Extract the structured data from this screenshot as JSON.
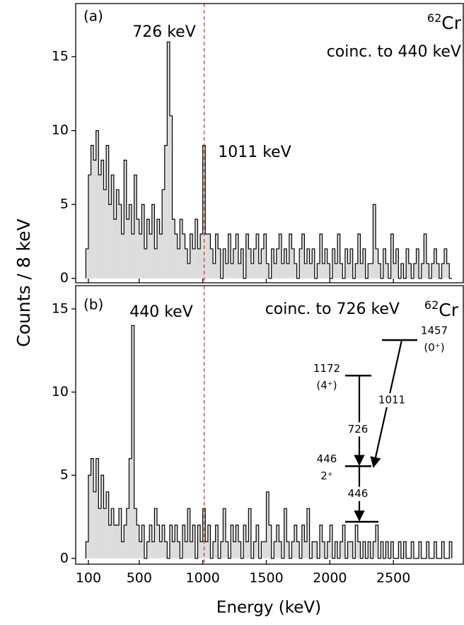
{
  "chart_data": [
    {
      "type": "histogram",
      "panel_label": "(a)",
      "nucleus_mass": "62",
      "nucleus_symbol": "Cr",
      "coincidence": "coinc. to 440 keV",
      "annotations": [
        {
          "text": "726 keV",
          "color": "#000000"
        },
        {
          "text": "1011 keV",
          "color": "#d42a20"
        }
      ],
      "vline": {
        "x": 1011,
        "color": "#d42a20"
      },
      "fill_color": "#dcdcdc",
      "line_color": "#000000",
      "bins": [
        80,
        100,
        120,
        140,
        160,
        180,
        200,
        220,
        240,
        260,
        280,
        300,
        320,
        340,
        360,
        380,
        400,
        420,
        440,
        460,
        480,
        500,
        520,
        540,
        560,
        580,
        600,
        620,
        640,
        660,
        680,
        700,
        720,
        740,
        760,
        780,
        800,
        820,
        840,
        860,
        880,
        900,
        920,
        940,
        960,
        980,
        1000,
        1020,
        1040,
        1060,
        1080,
        1100,
        1120,
        1140,
        1160,
        1180,
        1200,
        1220,
        1240,
        1260,
        1280,
        1300,
        1320,
        1340,
        1360,
        1380,
        1400,
        1420,
        1440,
        1460,
        1480,
        1500,
        1520,
        1540,
        1560,
        1580,
        1600,
        1620,
        1640,
        1660,
        1680,
        1700,
        1720,
        1740,
        1760,
        1780,
        1800,
        1820,
        1840,
        1860,
        1880,
        1900,
        1920,
        1940,
        1960,
        1980,
        2000,
        2020,
        2040,
        2060,
        2080,
        2100,
        2120,
        2140,
        2160,
        2180,
        2200,
        2220,
        2240,
        2260,
        2280,
        2300,
        2320,
        2340,
        2360,
        2380,
        2400,
        2420,
        2440,
        2460,
        2480,
        2500,
        2520,
        2540,
        2560,
        2580,
        2600,
        2620,
        2640,
        2660,
        2680,
        2700,
        2720,
        2740,
        2760,
        2780,
        2800,
        2820,
        2840,
        2860,
        2880,
        2900,
        2920,
        2940,
        2960
      ],
      "values": [
        2,
        7,
        9,
        8,
        10,
        7,
        8,
        6,
        9,
        5,
        7,
        4,
        6,
        5,
        3,
        8,
        4,
        5,
        3,
        7,
        4,
        3,
        5,
        2,
        4,
        3,
        5,
        2,
        4,
        3,
        6,
        9,
        16,
        11,
        4,
        3,
        2,
        4,
        3,
        2,
        1,
        3,
        2,
        4,
        2,
        3,
        9,
        3,
        3,
        2,
        1,
        3,
        2,
        0,
        2,
        1,
        3,
        1,
        2,
        3,
        1,
        2,
        0,
        3,
        2,
        1,
        2,
        3,
        1,
        2,
        3,
        1,
        0,
        2,
        1,
        2,
        3,
        1,
        2,
        1,
        3,
        2,
        1,
        0,
        2,
        3,
        1,
        2,
        1,
        2,
        0,
        1,
        3,
        1,
        2,
        1,
        0,
        2,
        1,
        3,
        1,
        0,
        2,
        1,
        2,
        0,
        1,
        3,
        1,
        2,
        0,
        1,
        1,
        5,
        2,
        1,
        0,
        2,
        1,
        0,
        3,
        1,
        2,
        0,
        1,
        0,
        2,
        1,
        0,
        1,
        2,
        0,
        1,
        3,
        1,
        0,
        1,
        2,
        1,
        0,
        1,
        2,
        1,
        0
      ],
      "xlim": [
        0,
        3050
      ],
      "ylim": [
        -0.3,
        18.6
      ],
      "yticks": [
        0,
        5,
        10,
        15
      ],
      "xticks": [
        100,
        500,
        1000,
        1500,
        2000,
        2500
      ],
      "show_xtick_labels": false
    },
    {
      "type": "histogram",
      "panel_label": "(b)",
      "nucleus_mass": "62",
      "nucleus_symbol": "Cr",
      "coincidence": "coinc. to 726 keV",
      "annotations": [
        {
          "text": "440 keV",
          "color": "#000000"
        }
      ],
      "vline": {
        "x": 1011,
        "color": "#d42a20"
      },
      "fill_color": "#dcdcdc",
      "line_color": "#000000",
      "bins": [
        80,
        100,
        120,
        140,
        160,
        180,
        200,
        220,
        240,
        260,
        280,
        300,
        320,
        340,
        360,
        380,
        400,
        420,
        440,
        460,
        480,
        500,
        520,
        540,
        560,
        580,
        600,
        620,
        640,
        660,
        680,
        700,
        720,
        740,
        760,
        780,
        800,
        820,
        840,
        860,
        880,
        900,
        920,
        940,
        960,
        980,
        1000,
        1020,
        1040,
        1060,
        1080,
        1100,
        1120,
        1140,
        1160,
        1180,
        1200,
        1220,
        1240,
        1260,
        1280,
        1300,
        1320,
        1340,
        1360,
        1380,
        1400,
        1420,
        1440,
        1460,
        1480,
        1500,
        1520,
        1540,
        1560,
        1580,
        1600,
        1620,
        1640,
        1660,
        1680,
        1700,
        1720,
        1740,
        1760,
        1780,
        1800,
        1820,
        1840,
        1860,
        1880,
        1900,
        1920,
        1940,
        1960,
        1980,
        2000,
        2020,
        2040,
        2060,
        2080,
        2100,
        2120,
        2140,
        2160,
        2180,
        2200,
        2220,
        2240,
        2260,
        2280,
        2300,
        2320,
        2340,
        2360,
        2380,
        2400,
        2420,
        2440,
        2460,
        2480,
        2500,
        2520,
        2540,
        2560,
        2580,
        2600,
        2620,
        2640,
        2660,
        2680,
        2700,
        2720,
        2740,
        2760,
        2780,
        2800,
        2820,
        2840,
        2860,
        2880,
        2900,
        2920,
        2940,
        2960
      ],
      "values": [
        1,
        5,
        6,
        4,
        6,
        3,
        5,
        3,
        4,
        2,
        3,
        2,
        2,
        3,
        1,
        2,
        3,
        6,
        14,
        3,
        2,
        1,
        2,
        0,
        1,
        2,
        1,
        3,
        2,
        1,
        2,
        1,
        0,
        2,
        1,
        2,
        1,
        0,
        2,
        1,
        3,
        1,
        2,
        0,
        2,
        1,
        3,
        1,
        2,
        0,
        1,
        2,
        0,
        1,
        3,
        1,
        0,
        2,
        1,
        2,
        1,
        0,
        2,
        1,
        3,
        0,
        1,
        2,
        0,
        1,
        1,
        4,
        2,
        0,
        1,
        2,
        1,
        0,
        3,
        1,
        0,
        1,
        2,
        1,
        0,
        2,
        1,
        3,
        0,
        1,
        1,
        0,
        2,
        1,
        0,
        1,
        2,
        0,
        1,
        0,
        1,
        2,
        0,
        1,
        1,
        0,
        2,
        1,
        0,
        1,
        0,
        1,
        0,
        1,
        2,
        0,
        1,
        0,
        1,
        0,
        1,
        0,
        0,
        1,
        0,
        1,
        0,
        0,
        1,
        0,
        0,
        1,
        0,
        0,
        1,
        0,
        0,
        1,
        0,
        0,
        1,
        0,
        0,
        1
      ],
      "xlim": [
        0,
        3050
      ],
      "ylim": [
        -0.35,
        16.4
      ],
      "yticks": [
        0,
        5,
        10,
        15
      ],
      "xticks": [
        100,
        500,
        1000,
        1500,
        2000,
        2500
      ],
      "show_xtick_labels": true,
      "xlabel": "Energy (keV)"
    }
  ],
  "ylabel": "Counts / 8 keV",
  "level_scheme": {
    "level_color": "#3a55a0",
    "levels": [
      {
        "energy": 0
      },
      {
        "energy": 446,
        "spin": "2⁺"
      },
      {
        "energy": 1172,
        "spin": "(4⁺)"
      },
      {
        "energy": 1457,
        "spin": "(0⁺)"
      }
    ],
    "transitions": [
      {
        "label": "726"
      },
      {
        "label": "446"
      },
      {
        "label": "1011"
      }
    ]
  }
}
